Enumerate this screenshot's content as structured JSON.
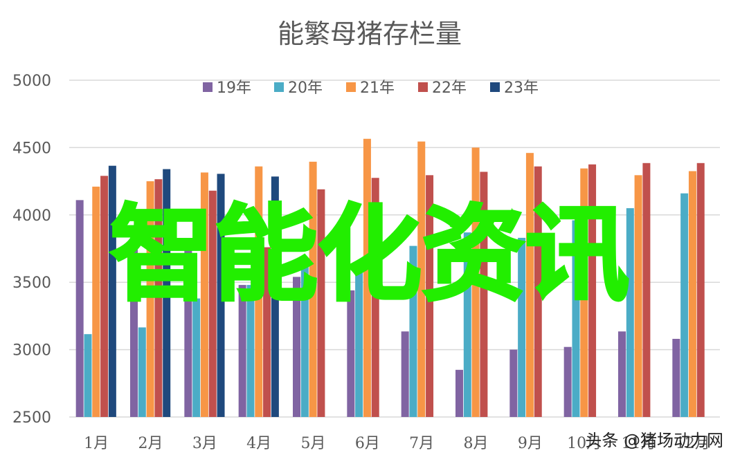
{
  "chart_data": {
    "type": "bar",
    "title": "能繁母猪存栏量",
    "categories": [
      "1月",
      "2月",
      "3月",
      "4月",
      "5月",
      "6月",
      "7月",
      "8月",
      "9月",
      "10月",
      "11月",
      "12月"
    ],
    "ylim": [
      2500,
      5000
    ],
    "yticks": [
      2500,
      3000,
      3500,
      4000,
      4500,
      5000
    ],
    "grid": true,
    "legend_position": "top",
    "series": [
      {
        "name": "19年",
        "color": "#8064a2",
        "values": [
          4110,
          3900,
          3800,
          3480,
          3540,
          3440,
          3135,
          2850,
          3000,
          3020,
          3135,
          3080
        ]
      },
      {
        "name": "20年",
        "color": "#4bacc6",
        "values": [
          3115,
          3165,
          3380,
          3480,
          3620,
          3630,
          3770,
          3870,
          3830,
          3960,
          4050,
          4160
        ]
      },
      {
        "name": "21年",
        "color": "#f79646",
        "values": [
          4210,
          4250,
          4315,
          4360,
          4395,
          4565,
          4545,
          4500,
          4460,
          4345,
          4295,
          4325
        ]
      },
      {
        "name": "22年",
        "color": "#c0504d",
        "values": [
          4290,
          4265,
          4180,
          3760,
          4190,
          4275,
          4295,
          4320,
          4360,
          4375,
          4385,
          4385
        ]
      },
      {
        "name": "23年",
        "color": "#1f497d",
        "values": [
          4365,
          4340,
          4305,
          4285,
          null,
          null,
          null,
          null,
          null,
          null,
          null,
          null
        ]
      }
    ]
  },
  "overlay_text": "智能化资讯",
  "watermark": "头条 @猪场动力网"
}
